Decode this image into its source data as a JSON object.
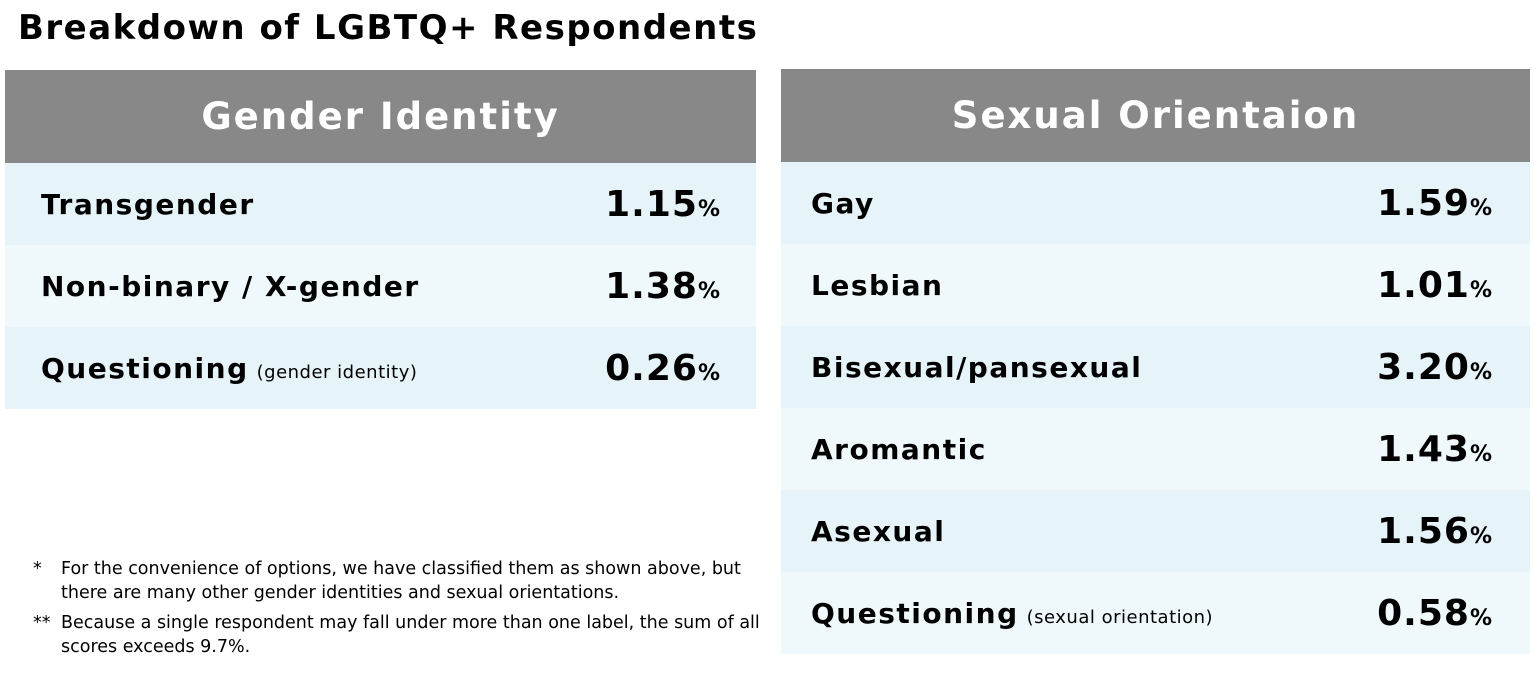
{
  "title": "Breakdown of LGBTQ+ Respondents",
  "gender_table": {
    "header": "Gender Identity",
    "rows": [
      {
        "label": "Transgender",
        "value": "1.15",
        "unit": "%"
      },
      {
        "label": "Non-binary / X-gender",
        "value": "1.38",
        "unit": "%"
      },
      {
        "label": "Questioning",
        "note": "(gender identity)",
        "value": "0.26",
        "unit": "%"
      }
    ]
  },
  "orientation_table": {
    "header": "Sexual Orientaion",
    "rows": [
      {
        "label": "Gay",
        "value": "1.59",
        "unit": "%"
      },
      {
        "label": "Lesbian",
        "value": "1.01",
        "unit": "%"
      },
      {
        "label": "Bisexual/pansexual",
        "value": "3.20",
        "unit": "%"
      },
      {
        "label": "Aromantic",
        "value": "1.43",
        "unit": "%"
      },
      {
        "label": "Asexual",
        "value": "1.56",
        "unit": "%"
      },
      {
        "label": "Questioning",
        "note": "(sexual orientation)",
        "value": "0.58",
        "unit": "%"
      }
    ]
  },
  "footnotes": [
    {
      "marker": "*",
      "text": "For the convenience of options, we have classified them as shown above, but there are many other gender identities and sexual orientations."
    },
    {
      "marker": "**",
      "text": "Because a single respondent may fall under more than one label, the sum of all scores exceeds 9.7%."
    }
  ]
}
